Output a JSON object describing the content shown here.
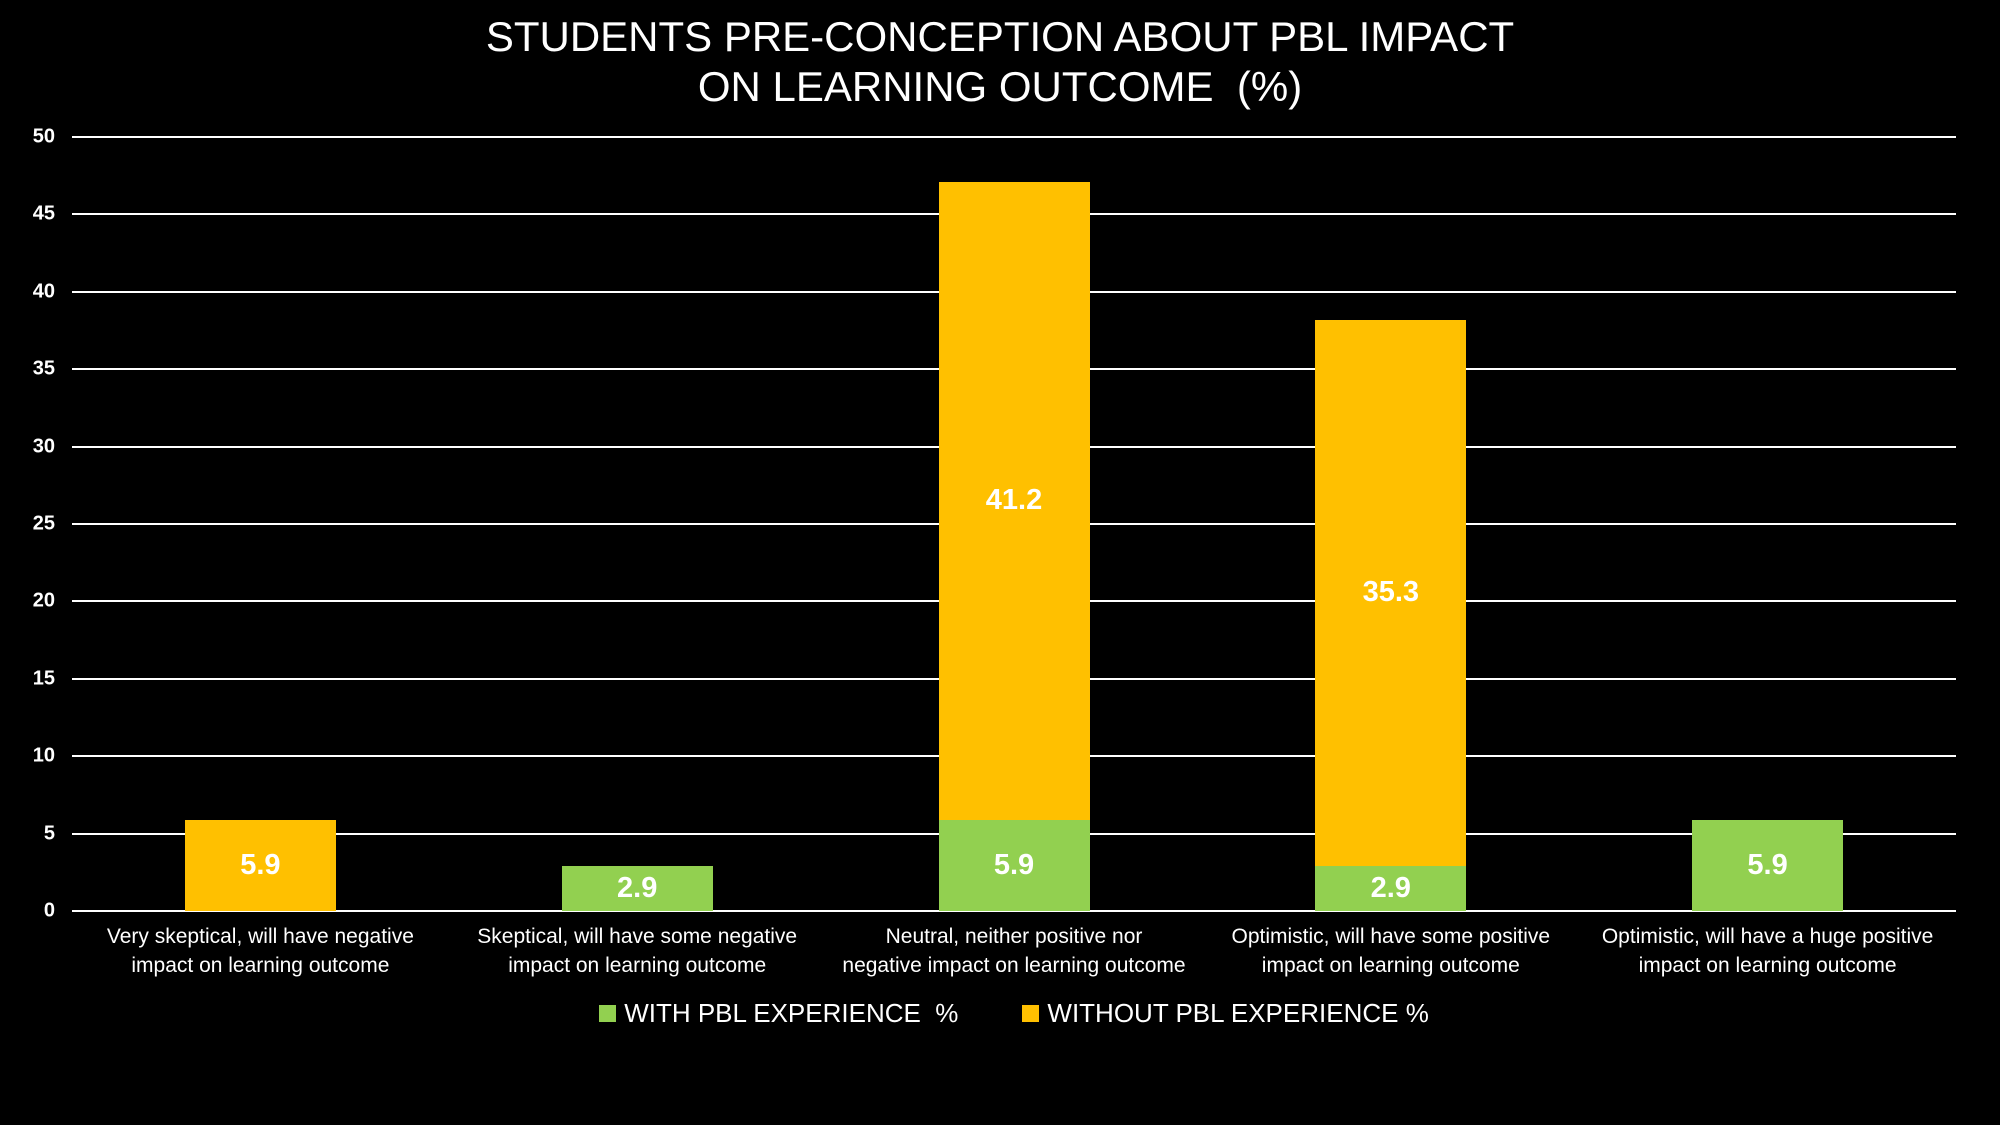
{
  "title": {
    "text": "STUDENTS PRE-CONCEPTION ABOUT PBL IMPACT\nON LEARNING OUTCOME  (%)",
    "color": "#FFFFFF"
  },
  "colors": {
    "background": "#000000",
    "gridline": "#FFFFFF",
    "text": "#FFFFFF",
    "with_pbl_green": "#92D050",
    "without_pbl_orange": "#FFC000"
  },
  "chart_data": {
    "type": "bar",
    "stacked": true,
    "title": "STUDENTS PRE-CONCEPTION ABOUT PBL IMPACT ON LEARNING OUTCOME  (%)",
    "categories": [
      "Very skeptical, will have negative\nimpact on learning outcome",
      "Skeptical, will have some negative\nimpact on learning outcome",
      "Neutral, neither positive nor\nnegative impact on learning outcome",
      "Optimistic, will have some positive\nimpact on learning outcome",
      "Optimistic, will have a huge positive\nimpact on learning outcome"
    ],
    "series": [
      {
        "name": "WITH PBL EXPERIENCE  %",
        "color": "#92D050",
        "values": [
          0,
          2.9,
          5.9,
          2.9,
          5.9
        ]
      },
      {
        "name": "WITHOUT PBL EXPERIENCE %",
        "color": "#FFC000",
        "values": [
          5.9,
          0,
          41.2,
          35.3,
          0
        ]
      }
    ],
    "data_labels": {
      "show": true,
      "color": "#FFFFFF",
      "values_shown": [
        "5.9",
        "2.9",
        "5.9",
        "41.2",
        "2.9",
        "35.3",
        "5.9"
      ]
    },
    "y_axis": {
      "min": 0,
      "max": 50,
      "step": 5,
      "tick_labels": [
        "0",
        "5",
        "10",
        "15",
        "20",
        "25",
        "30",
        "35",
        "40",
        "45",
        "50"
      ]
    },
    "grid": true,
    "gridline_color": "#FFFFFF",
    "legend_position": "bottom",
    "background": "#000000"
  }
}
